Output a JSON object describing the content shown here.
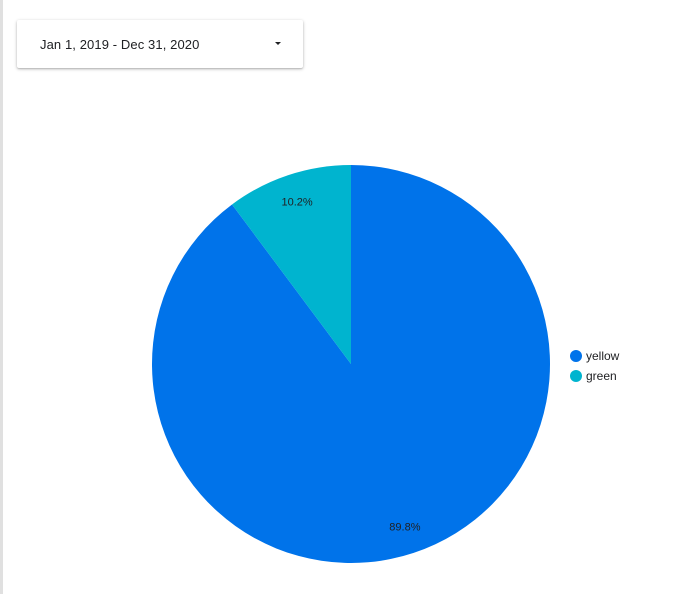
{
  "date_range": {
    "label": "Jan 1, 2019 - Dec 31, 2020",
    "icon": "arrow-drop-down-icon"
  },
  "chart_data": {
    "type": "pie",
    "categories": [
      "yellow",
      "green"
    ],
    "values": [
      89.8,
      10.2
    ],
    "labels": [
      "89.8%",
      "10.2%"
    ],
    "colors": [
      "#0073ea",
      "#00b4cf"
    ],
    "start_angle": "top",
    "direction": "clockwise",
    "legend_position": "right"
  }
}
